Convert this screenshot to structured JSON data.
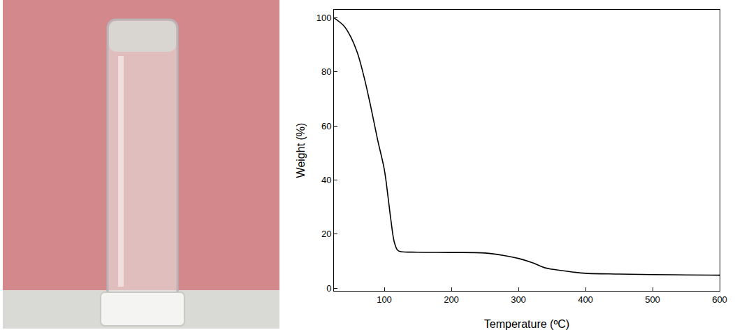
{
  "chart_data": {
    "type": "line",
    "x_label": "Temperature (ºC)",
    "y_label": "Weight (%)",
    "x": [
      25,
      40,
      50,
      60,
      70,
      80,
      90,
      100,
      105,
      110,
      115,
      120,
      125,
      150,
      200,
      250,
      280,
      300,
      320,
      340,
      350,
      380,
      400,
      450,
      500,
      550,
      600
    ],
    "values": [
      100,
      97,
      93,
      87,
      78,
      67,
      55,
      44,
      35,
      25,
      17,
      14,
      13.5,
      13.3,
      13.2,
      13,
      12,
      11,
      9.5,
      7.5,
      7,
      6,
      5.5,
      5.2,
      5,
      4.9,
      4.8
    ],
    "color": "#000000",
    "xlim": [
      25,
      600
    ],
    "ylim": [
      -1,
      103
    ],
    "xticks": [
      100,
      200,
      300,
      400,
      500,
      600
    ],
    "yticks": [
      0,
      20,
      40,
      60,
      80,
      100
    ],
    "grid": false
  }
}
